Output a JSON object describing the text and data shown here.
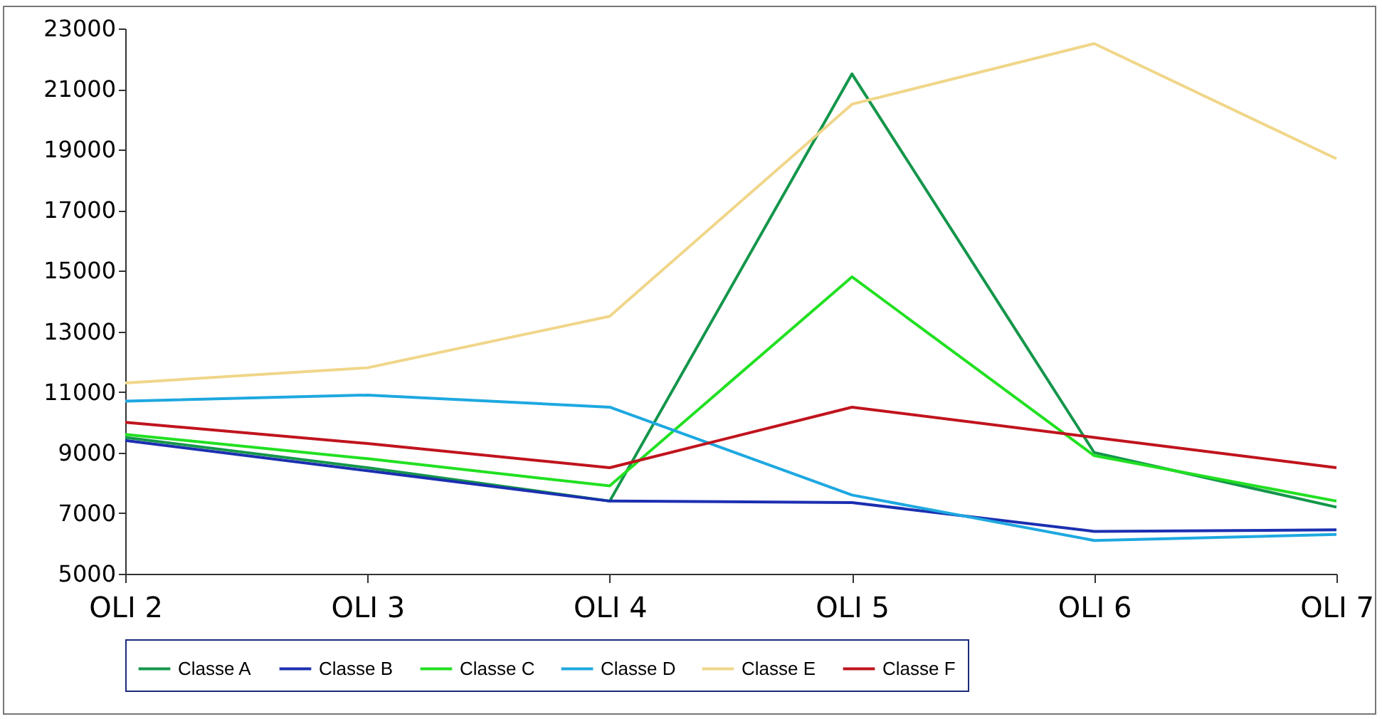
{
  "chart_data": {
    "type": "line",
    "categories": [
      "OLI 2",
      "OLI 3",
      "OLI 4",
      "OLI 5",
      "OLI 6",
      "OLI 7"
    ],
    "series": [
      {
        "name": "Classe A",
        "color": "#14964b",
        "values": [
          9500,
          8500,
          7400,
          21500,
          9000,
          7200
        ]
      },
      {
        "name": "Classe B",
        "color": "#1b2fb0",
        "values": [
          9400,
          8400,
          7400,
          7350,
          6400,
          6450
        ]
      },
      {
        "name": "Classe C",
        "color": "#22e022",
        "values": [
          9600,
          8800,
          7900,
          14800,
          8900,
          7400
        ]
      },
      {
        "name": "Classe D",
        "color": "#1ea8e0",
        "values": [
          10700,
          10900,
          10500,
          7600,
          6100,
          6300
        ]
      },
      {
        "name": "Classe E",
        "color": "#f0d68a",
        "values": [
          11300,
          11800,
          13500,
          20500,
          22500,
          18700
        ]
      },
      {
        "name": "Classe F",
        "color": "#c0141e",
        "values": [
          10000,
          9300,
          8500,
          10500,
          9500,
          8500
        ]
      }
    ],
    "ylim": [
      5000,
      23000
    ],
    "yticks": [
      5000,
      7000,
      9000,
      11000,
      13000,
      15000,
      17000,
      19000,
      21000,
      23000
    ],
    "grid": false,
    "legend": "bottom",
    "marker": "none",
    "line_style": "solid"
  }
}
